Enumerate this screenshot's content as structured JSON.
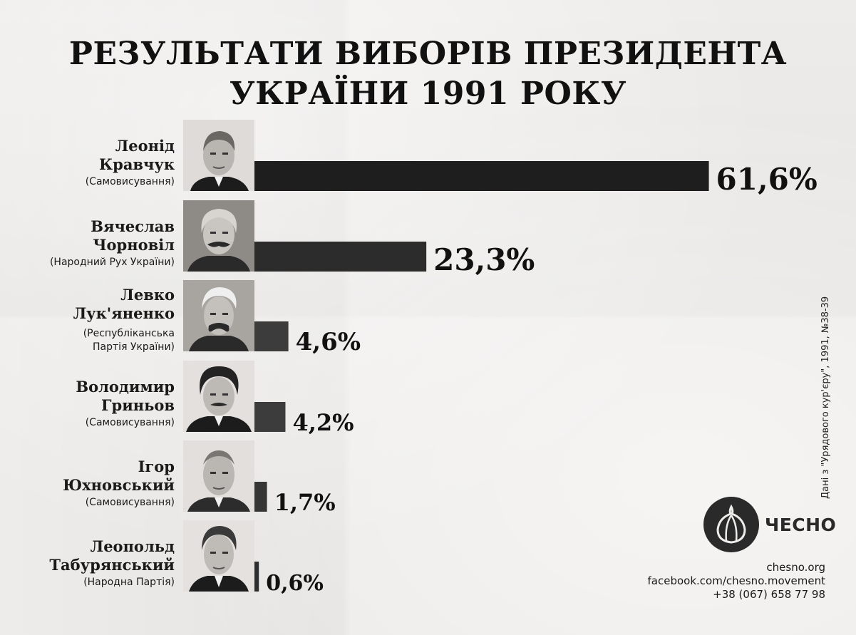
{
  "title": {
    "line1": "РЕЗУЛЬТАТИ ВИБОРІВ ПРЕЗИДЕНТА",
    "line2": "УКРАЇНИ 1991 РОКУ"
  },
  "candidates": [
    {
      "first": "Леонід",
      "last": "Кравчук",
      "party": "(Самовисування)",
      "portrait_icon": "portrait-kravchuk-icon"
    },
    {
      "first": "Вячеслав",
      "last": "Чорновіл",
      "party": "(Народний Рух України)",
      "portrait_icon": "portrait-chornovil-icon"
    },
    {
      "first": "Левко",
      "last": "Лук'яненко",
      "party_line1": "(Республіканська",
      "party_line2": "Партія України)",
      "portrait_icon": "portrait-lukianenko-icon"
    },
    {
      "first": "Володимир",
      "last": "Гриньов",
      "party": "(Самовисування)",
      "portrait_icon": "portrait-hrynov-icon"
    },
    {
      "first": "Ігор",
      "last": "Юхновський",
      "party": "(Самовисування)",
      "portrait_icon": "portrait-yukhnovsky-icon"
    },
    {
      "first": "Леопольд",
      "last": "Табурянський",
      "party": "(Народна Партія)",
      "portrait_icon": "portrait-taburiansky-icon"
    }
  ],
  "chart_data": {
    "type": "bar",
    "orientation": "horizontal",
    "categories": [
      "Леонід Кравчук",
      "Вячеслав Чорновіл",
      "Левко Лук'яненко",
      "Володимир Гриньов",
      "Ігор Юхновський",
      "Леопольд Табурянський"
    ],
    "values": [
      61.6,
      23.3,
      4.6,
      4.2,
      1.7,
      0.6
    ],
    "value_labels": [
      "61,6%",
      "23,3%",
      "4,6%",
      "4,2%",
      "1,7%",
      "0,6%"
    ],
    "bar_colors": [
      "#1e1e1e",
      "#2c2c2c",
      "#3c3c3c",
      "#3c3c3c",
      "#353535",
      "#2e2e2e"
    ],
    "title": "РЕЗУЛЬТАТИ ВИБОРІВ ПРЕЗИДЕНТА УКРАЇНИ 1991 РОКУ",
    "unit": "%"
  },
  "source_note": "Дані з \"Урядового кур'єру\", 1991, №38-39",
  "logo": {
    "text": "ЧЕСНО",
    "icon": "garlic-icon"
  },
  "contacts": {
    "site": "chesno.org",
    "facebook": "facebook.com/chesno.movement",
    "phone": "+38 (067) 658 77 98"
  },
  "colors": {
    "background": "#eeecea",
    "text": "#111111",
    "logo": "#2a2a2a"
  }
}
